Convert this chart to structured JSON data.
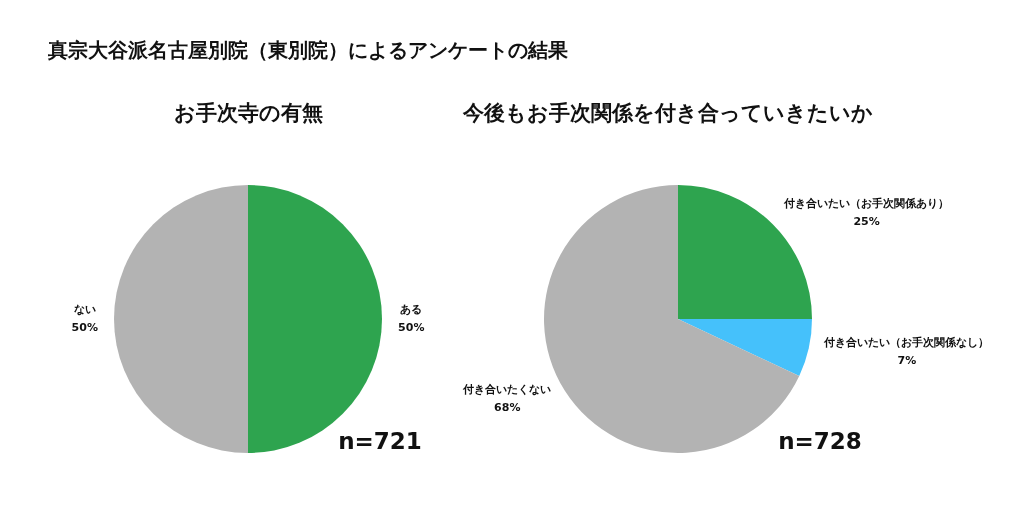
{
  "chart_data": [
    {
      "type": "pie",
      "title": "お手次寺の有無",
      "categories": [
        "ある",
        "ない"
      ],
      "values": [
        50,
        50
      ],
      "colors": [
        "#2ea44f",
        "#b3b3b3"
      ],
      "value_labels": [
        "50%",
        "50%"
      ],
      "legend": false,
      "annotations": [
        "真宗大谷派名古屋別院（東別院）によるアンケートの結果",
        "n=721"
      ]
    },
    {
      "type": "pie",
      "title": "今後もお手次関係を付き合っていきたいか",
      "categories": [
        "付き合いたい（お手次関係あり）",
        "付き合いたい（お手次関係なし）",
        "付き合いたくない"
      ],
      "values": [
        25,
        7,
        68
      ],
      "colors": [
        "#2ea44f",
        "#45c1fb",
        "#b3b3b3"
      ],
      "value_labels": [
        "25%",
        "7%",
        "68%"
      ],
      "legend": false,
      "annotations": [
        "n=728"
      ]
    }
  ]
}
